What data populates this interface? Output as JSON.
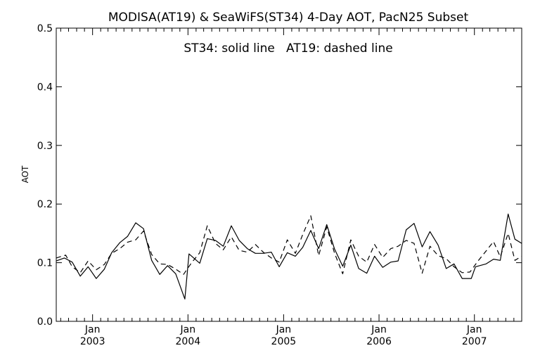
{
  "chart_data": {
    "type": "line",
    "title": "MODISA(AT19) & SeaWiFS(ST34) 4-Day AOT, PacN25 Subset",
    "annotation": "ST34: solid line   AT19: dashed line",
    "ylabel": "AOT",
    "xlabel": "",
    "ylim": [
      0.0,
      0.5
    ],
    "xlim": [
      "2002-08-15",
      "2007-07-01"
    ],
    "y_ticks": [
      "0.0",
      "0.1",
      "0.2",
      "0.3",
      "0.4",
      "0.5"
    ],
    "x_ticks": [
      {
        "month": "Jan",
        "year": "2003",
        "date": "2003-01-01"
      },
      {
        "month": "Jan",
        "year": "2004",
        "date": "2004-01-01"
      },
      {
        "month": "Jan",
        "year": "2005",
        "date": "2005-01-01"
      },
      {
        "month": "Jan",
        "year": "2006",
        "date": "2006-01-01"
      },
      {
        "month": "Jan",
        "year": "2007",
        "date": "2007-01-01"
      }
    ],
    "grid": false,
    "series": [
      {
        "name": "ST34",
        "style": "solid",
        "color": "#000000",
        "points": [
          [
            "2002-08-15",
            0.103
          ],
          [
            "2002-09-15",
            0.108
          ],
          [
            "2002-10-15",
            0.101
          ],
          [
            "2002-11-15",
            0.077
          ],
          [
            "2002-12-15",
            0.093
          ],
          [
            "2003-01-15",
            0.073
          ],
          [
            "2003-02-15",
            0.089
          ],
          [
            "2003-03-15",
            0.117
          ],
          [
            "2003-04-15",
            0.134
          ],
          [
            "2003-05-15",
            0.145
          ],
          [
            "2003-06-15",
            0.168
          ],
          [
            "2003-07-15",
            0.158
          ],
          [
            "2003-08-15",
            0.104
          ],
          [
            "2003-09-15",
            0.08
          ],
          [
            "2003-10-15",
            0.095
          ],
          [
            "2003-11-15",
            0.081
          ],
          [
            "2003-12-20",
            0.038
          ],
          [
            "2004-01-05",
            0.115
          ],
          [
            "2004-02-15",
            0.099
          ],
          [
            "2004-03-15",
            0.141
          ],
          [
            "2004-04-15",
            0.138
          ],
          [
            "2004-05-15",
            0.128
          ],
          [
            "2004-06-15",
            0.163
          ],
          [
            "2004-07-15",
            0.138
          ],
          [
            "2004-08-15",
            0.124
          ],
          [
            "2004-09-15",
            0.116
          ],
          [
            "2004-10-15",
            0.116
          ],
          [
            "2004-11-15",
            0.118
          ],
          [
            "2004-12-15",
            0.093
          ],
          [
            "2005-01-15",
            0.117
          ],
          [
            "2005-02-15",
            0.111
          ],
          [
            "2005-03-15",
            0.126
          ],
          [
            "2005-04-15",
            0.155
          ],
          [
            "2005-05-15",
            0.124
          ],
          [
            "2005-06-15",
            0.165
          ],
          [
            "2005-07-15",
            0.123
          ],
          [
            "2005-08-15",
            0.094
          ],
          [
            "2005-09-15",
            0.13
          ],
          [
            "2005-10-15",
            0.09
          ],
          [
            "2005-11-15",
            0.082
          ],
          [
            "2005-12-15",
            0.111
          ],
          [
            "2006-01-15",
            0.092
          ],
          [
            "2006-02-15",
            0.101
          ],
          [
            "2006-03-15",
            0.103
          ],
          [
            "2006-04-15",
            0.156
          ],
          [
            "2006-05-15",
            0.167
          ],
          [
            "2006-06-15",
            0.127
          ],
          [
            "2006-07-15",
            0.153
          ],
          [
            "2006-08-15",
            0.13
          ],
          [
            "2006-09-15",
            0.09
          ],
          [
            "2006-10-15",
            0.098
          ],
          [
            "2006-11-15",
            0.073
          ],
          [
            "2006-12-20",
            0.073
          ],
          [
            "2007-01-05",
            0.093
          ],
          [
            "2007-02-15",
            0.098
          ],
          [
            "2007-03-15",
            0.106
          ],
          [
            "2007-04-10",
            0.104
          ],
          [
            "2007-05-10",
            0.183
          ],
          [
            "2007-06-05",
            0.14
          ],
          [
            "2007-07-01",
            0.133
          ]
        ]
      },
      {
        "name": "AT19",
        "style": "dashed",
        "color": "#000000",
        "points": [
          [
            "2002-08-15",
            0.108
          ],
          [
            "2002-09-20",
            0.113
          ],
          [
            "2002-10-15",
            0.093
          ],
          [
            "2002-11-15",
            0.083
          ],
          [
            "2002-12-15",
            0.103
          ],
          [
            "2003-01-15",
            0.088
          ],
          [
            "2003-02-15",
            0.097
          ],
          [
            "2003-03-15",
            0.116
          ],
          [
            "2003-04-15",
            0.124
          ],
          [
            "2003-05-15",
            0.135
          ],
          [
            "2003-06-15",
            0.139
          ],
          [
            "2003-07-15",
            0.154
          ],
          [
            "2003-08-15",
            0.114
          ],
          [
            "2003-09-15",
            0.098
          ],
          [
            "2003-10-15",
            0.097
          ],
          [
            "2003-11-15",
            0.089
          ],
          [
            "2003-12-15",
            0.08
          ],
          [
            "2004-01-15",
            0.1
          ],
          [
            "2004-02-15",
            0.117
          ],
          [
            "2004-03-15",
            0.163
          ],
          [
            "2004-04-15",
            0.133
          ],
          [
            "2004-05-15",
            0.122
          ],
          [
            "2004-06-15",
            0.144
          ],
          [
            "2004-07-15",
            0.121
          ],
          [
            "2004-08-15",
            0.118
          ],
          [
            "2004-09-15",
            0.131
          ],
          [
            "2004-10-15",
            0.118
          ],
          [
            "2004-11-15",
            0.108
          ],
          [
            "2004-12-15",
            0.101
          ],
          [
            "2005-01-15",
            0.139
          ],
          [
            "2005-02-15",
            0.116
          ],
          [
            "2005-03-15",
            0.148
          ],
          [
            "2005-04-15",
            0.18
          ],
          [
            "2005-05-15",
            0.112
          ],
          [
            "2005-06-15",
            0.161
          ],
          [
            "2005-07-15",
            0.116
          ],
          [
            "2005-08-15",
            0.081
          ],
          [
            "2005-09-15",
            0.139
          ],
          [
            "2005-10-15",
            0.111
          ],
          [
            "2005-11-15",
            0.101
          ],
          [
            "2005-12-15",
            0.131
          ],
          [
            "2006-01-15",
            0.109
          ],
          [
            "2006-02-15",
            0.124
          ],
          [
            "2006-03-15",
            0.128
          ],
          [
            "2006-04-15",
            0.138
          ],
          [
            "2006-05-15",
            0.133
          ],
          [
            "2006-06-15",
            0.082
          ],
          [
            "2006-07-15",
            0.128
          ],
          [
            "2006-08-15",
            0.112
          ],
          [
            "2006-09-15",
            0.107
          ],
          [
            "2006-10-15",
            0.093
          ],
          [
            "2006-11-15",
            0.083
          ],
          [
            "2006-12-15",
            0.084
          ],
          [
            "2007-01-15",
            0.103
          ],
          [
            "2007-02-15",
            0.12
          ],
          [
            "2007-03-15",
            0.136
          ],
          [
            "2007-04-10",
            0.11
          ],
          [
            "2007-05-10",
            0.15
          ],
          [
            "2007-06-05",
            0.104
          ],
          [
            "2007-07-01",
            0.111
          ]
        ]
      }
    ]
  }
}
